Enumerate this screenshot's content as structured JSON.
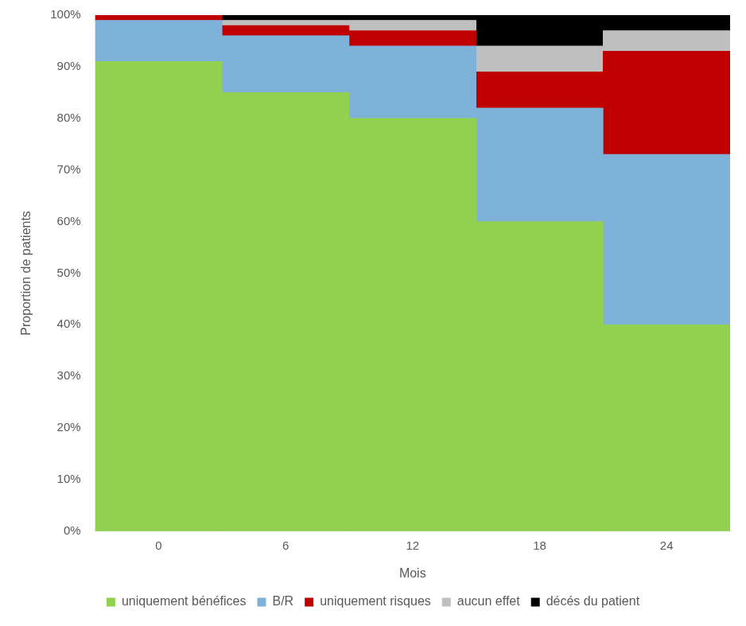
{
  "chart_data": {
    "type": "bar",
    "stacked": true,
    "x_label": "Mois",
    "y_label": "Proportion de patients",
    "categories": [
      "0",
      "6",
      "12",
      "18",
      "24"
    ],
    "series": [
      {
        "name": "uniquement bénéfices",
        "color": "#92d050",
        "values": [
          91,
          85,
          80,
          60,
          40
        ]
      },
      {
        "name": "B/R",
        "color": "#7fb2d8",
        "values": [
          8,
          11,
          14,
          22,
          33
        ]
      },
      {
        "name": "uniquement risques",
        "color": "#c00000",
        "values": [
          1,
          2,
          3,
          7,
          20
        ]
      },
      {
        "name": "aucun effet",
        "color": "#bfbfbf",
        "values": [
          0,
          1,
          2,
          5,
          4
        ]
      },
      {
        "name": "décés du patient",
        "color": "#000000",
        "values": [
          0,
          1,
          1,
          6,
          3
        ]
      }
    ],
    "ylim": [
      0,
      100
    ],
    "yticks": [
      {
        "value": 0,
        "label": "0%"
      },
      {
        "value": 10,
        "label": "10%"
      },
      {
        "value": 20,
        "label": "20%"
      },
      {
        "value": 30,
        "label": "30%"
      },
      {
        "value": 40,
        "label": "40%"
      },
      {
        "value": 50,
        "label": "50%"
      },
      {
        "value": 60,
        "label": "60%"
      },
      {
        "value": 70,
        "label": "70%"
      },
      {
        "value": 80,
        "label": "80%"
      },
      {
        "value": 90,
        "label": "90%"
      },
      {
        "value": 100,
        "label": "100%"
      }
    ],
    "grid": false,
    "legend": "bottom"
  }
}
